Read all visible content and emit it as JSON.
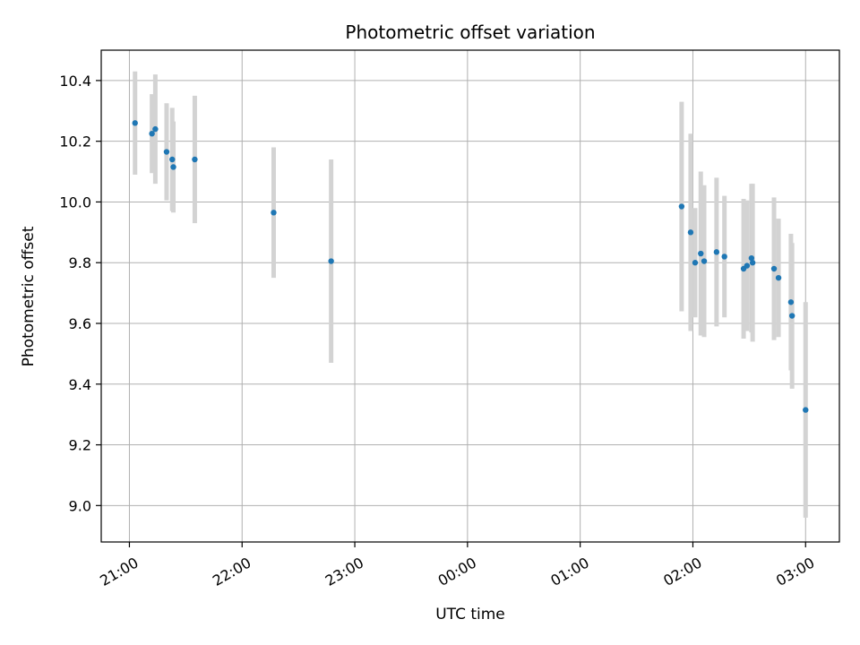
{
  "chart_data": {
    "type": "scatter",
    "title": "Photometric offset variation",
    "xlabel": "UTC time",
    "ylabel": "Photometric offset",
    "x_unit": "hours since 21:00 UTC",
    "xlim": [
      -0.25,
      6.3
    ],
    "ylim": [
      8.88,
      10.5
    ],
    "grid": true,
    "x_ticks": [
      {
        "value": 0,
        "label": "21:00"
      },
      {
        "value": 1,
        "label": "22:00"
      },
      {
        "value": 2,
        "label": "23:00"
      },
      {
        "value": 3,
        "label": "00:00"
      },
      {
        "value": 4,
        "label": "01:00"
      },
      {
        "value": 5,
        "label": "02:00"
      },
      {
        "value": 6,
        "label": "03:00"
      }
    ],
    "y_ticks": [
      {
        "value": 9.0,
        "label": "9.0"
      },
      {
        "value": 9.2,
        "label": "9.2"
      },
      {
        "value": 9.4,
        "label": "9.4"
      },
      {
        "value": 9.6,
        "label": "9.6"
      },
      {
        "value": 9.8,
        "label": "9.8"
      },
      {
        "value": 10.0,
        "label": "10.0"
      },
      {
        "value": 10.2,
        "label": "10.2"
      },
      {
        "value": 10.4,
        "label": "10.4"
      }
    ],
    "point_color": "#1f77b4",
    "errorbar_color": "#d3d3d3",
    "points": [
      {
        "x": 0.05,
        "y": 10.26,
        "err": 0.17
      },
      {
        "x": 0.2,
        "y": 10.225,
        "err": 0.13
      },
      {
        "x": 0.23,
        "y": 10.24,
        "err": 0.18
      },
      {
        "x": 0.33,
        "y": 10.165,
        "err": 0.16
      },
      {
        "x": 0.38,
        "y": 10.14,
        "err": 0.17
      },
      {
        "x": 0.39,
        "y": 10.115,
        "err": 0.15
      },
      {
        "x": 0.58,
        "y": 10.14,
        "err": 0.21
      },
      {
        "x": 1.28,
        "y": 9.965,
        "err": 0.215
      },
      {
        "x": 1.79,
        "y": 9.805,
        "err": 0.335
      },
      {
        "x": 4.9,
        "y": 9.985,
        "err": 0.345
      },
      {
        "x": 4.98,
        "y": 9.9,
        "err": 0.325
      },
      {
        "x": 5.02,
        "y": 9.8,
        "err": 0.18
      },
      {
        "x": 5.07,
        "y": 9.83,
        "err": 0.27
      },
      {
        "x": 5.1,
        "y": 9.805,
        "err": 0.25
      },
      {
        "x": 5.21,
        "y": 9.835,
        "err": 0.245
      },
      {
        "x": 5.28,
        "y": 9.82,
        "err": 0.2
      },
      {
        "x": 5.45,
        "y": 9.78,
        "err": 0.23
      },
      {
        "x": 5.48,
        "y": 9.79,
        "err": 0.215
      },
      {
        "x": 5.52,
        "y": 9.815,
        "err": 0.245
      },
      {
        "x": 5.53,
        "y": 9.8,
        "err": 0.26
      },
      {
        "x": 5.72,
        "y": 9.78,
        "err": 0.235
      },
      {
        "x": 5.76,
        "y": 9.75,
        "err": 0.195
      },
      {
        "x": 5.87,
        "y": 9.67,
        "err": 0.225
      },
      {
        "x": 5.88,
        "y": 9.625,
        "err": 0.24
      },
      {
        "x": 6.0,
        "y": 9.315,
        "err": 0.355
      }
    ]
  }
}
